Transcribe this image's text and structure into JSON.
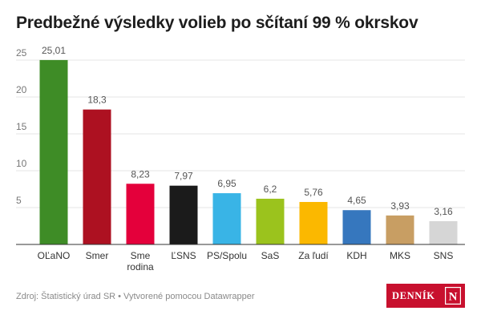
{
  "title": "Predbežné výsledky volieb po sčítaní 99 % okrskov",
  "footer": {
    "source": "Zdroj: Štatistický úrad SR • Vytvorené pomocou Datawrapper"
  },
  "logo": {
    "text": "DENNÍK",
    "mark": "N"
  },
  "chart_data": {
    "type": "bar",
    "categories": [
      "OĽaNO",
      "Smer",
      "Sme rodina",
      "ĽSNS",
      "PS/Spolu",
      "SaS",
      "Za ľudí",
      "KDH",
      "MKS",
      "SNS"
    ],
    "values": [
      25.01,
      18.3,
      8.23,
      7.97,
      6.95,
      6.2,
      5.76,
      4.65,
      3.93,
      3.16
    ],
    "value_labels": [
      "25,01",
      "18,3",
      "8,23",
      "7,97",
      "6,95",
      "6,2",
      "5,76",
      "4,65",
      "3,93",
      "3,16"
    ],
    "category_lines": [
      [
        "OĽaNO"
      ],
      [
        "Smer"
      ],
      [
        "Sme",
        "rodina"
      ],
      [
        "ĽSNS"
      ],
      [
        "PS/Spolu"
      ],
      [
        "SaS"
      ],
      [
        "Za ľudí"
      ],
      [
        "KDH"
      ],
      [
        "MKS"
      ],
      [
        "SNS"
      ]
    ],
    "colors": [
      "#3e8c26",
      "#ad1121",
      "#e4003b",
      "#1b1b1b",
      "#39b4e6",
      "#9bc31d",
      "#fbb800",
      "#3677be",
      "#c89e63",
      "#d6d6d6"
    ],
    "y_ticks": [
      5,
      10,
      15,
      20,
      25
    ],
    "y_tick_labels": [
      "5",
      "10",
      "15",
      "20",
      "25"
    ],
    "ylim": [
      0,
      25
    ],
    "grid": true,
    "xlabel": "",
    "ylabel": ""
  }
}
